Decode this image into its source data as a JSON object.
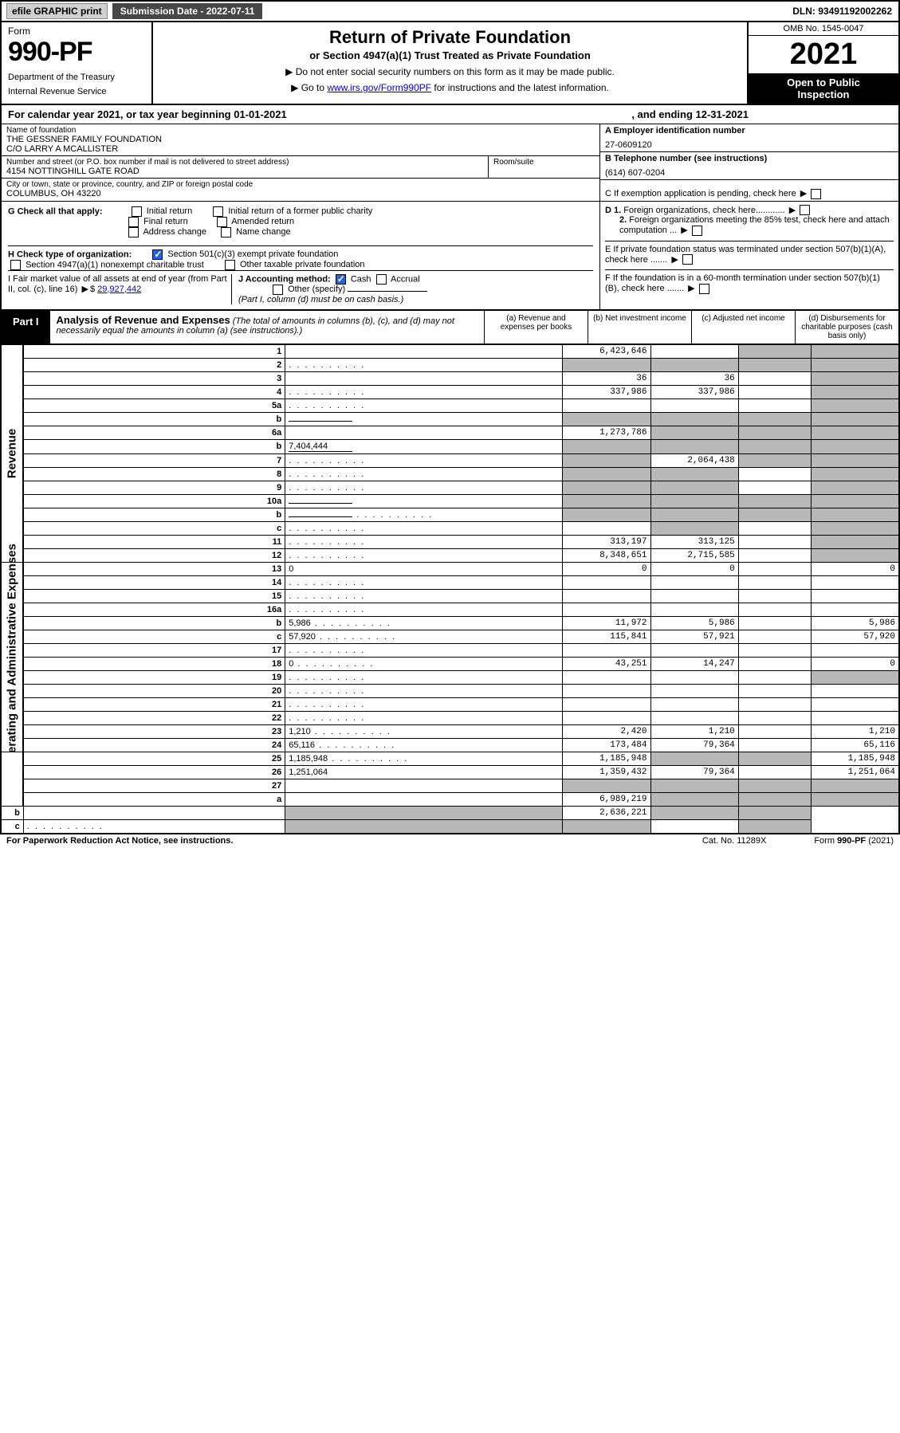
{
  "topbar": {
    "efile": "efile GRAPHIC print",
    "sub_label": "Submission Date - 2022-07-11",
    "dln": "DLN: 93491192002262"
  },
  "header": {
    "form_word": "Form",
    "form_no": "990-PF",
    "dept1": "Department of the Treasury",
    "dept2": "Internal Revenue Service",
    "title": "Return of Private Foundation",
    "subtitle": "or Section 4947(a)(1) Trust Treated as Private Foundation",
    "note1": "▶ Do not enter social security numbers on this form as it may be made public.",
    "note2_pre": "▶ Go to ",
    "note2_link": "www.irs.gov/Form990PF",
    "note2_post": " for instructions and the latest information.",
    "omb": "OMB No. 1545-0047",
    "year": "2021",
    "open1": "Open to Public",
    "open2": "Inspection"
  },
  "calyear": {
    "text": "For calendar year 2021, or tax year beginning 01-01-2021",
    "ending": ", and ending 12-31-2021"
  },
  "entity": {
    "name_lbl": "Name of foundation",
    "name1": "THE GESSNER FAMILY FOUNDATION",
    "name2": "C/O LARRY A MCALLISTER",
    "addr_lbl": "Number and street (or P.O. box number if mail is not delivered to street address)",
    "addr": "4154 NOTTINGHILL GATE ROAD",
    "room_lbl": "Room/suite",
    "city_lbl": "City or town, state or province, country, and ZIP or foreign postal code",
    "city": "COLUMBUS, OH  43220",
    "A_lbl": "A Employer identification number",
    "A_val": "27-0609120",
    "B_lbl": "B Telephone number (see instructions)",
    "B_val": "(614) 607-0204",
    "C_lbl": "C If exemption application is pending, check here"
  },
  "checks": {
    "G_lbl": "G Check all that apply:",
    "G_opts": [
      "Initial return",
      "Initial return of a former public charity",
      "Final return",
      "Amended return",
      "Address change",
      "Name change"
    ],
    "H_lbl": "H Check type of organization:",
    "H1": "Section 501(c)(3) exempt private foundation",
    "H2": "Section 4947(a)(1) nonexempt charitable trust",
    "H3": "Other taxable private foundation",
    "I_lbl": "I Fair market value of all assets at end of year (from Part II, col. (c), line 16)",
    "I_val": "29,927,442",
    "J_lbl": "J Accounting method:",
    "J1": "Cash",
    "J2": "Accrual",
    "J3": "Other (specify)",
    "J_note": "(Part I, column (d) must be on cash basis.)",
    "D1": "D 1. Foreign organizations, check here............",
    "D2": "2. Foreign organizations meeting the 85% test, check here and attach computation ...",
    "E": "E  If private foundation status was terminated under section 507(b)(1)(A), check here .......",
    "F": "F  If the foundation is in a 60-month termination under section 507(b)(1)(B), check here ......."
  },
  "part1": {
    "tab": "Part I",
    "title_b": "Analysis of Revenue and Expenses",
    "title_i": " (The total of amounts in columns (b), (c), and (d) may not necessarily equal the amounts in column (a) (see instructions).)",
    "col_a": "(a)  Revenue and expenses per books",
    "col_b": "(b)  Net investment income",
    "col_c": "(c)  Adjusted net income",
    "col_d": "(d)  Disbursements for charitable purposes (cash basis only)"
  },
  "side": {
    "rev": "Revenue",
    "exp": "Operating and Administrative Expenses"
  },
  "rows": [
    {
      "n": "1",
      "d": "",
      "a": "6,423,646",
      "b": "",
      "c": "",
      "cs": true,
      "ds": true
    },
    {
      "n": "2",
      "d": "",
      "dots": true,
      "a": "",
      "b": "",
      "c": "",
      "as": true,
      "bs": true,
      "cs": true,
      "ds": true
    },
    {
      "n": "3",
      "d": "",
      "a": "36",
      "b": "36",
      "c": "",
      "ds": true
    },
    {
      "n": "4",
      "d": "",
      "dots": true,
      "a": "337,986",
      "b": "337,986",
      "c": "",
      "ds": true
    },
    {
      "n": "5a",
      "d": "",
      "dots": true,
      "a": "",
      "b": "",
      "c": "",
      "ds": true
    },
    {
      "n": "b",
      "d": "",
      "uline": true,
      "a": "",
      "b": "",
      "c": "",
      "as": true,
      "bs": true,
      "cs": true,
      "ds": true
    },
    {
      "n": "6a",
      "d": "",
      "a": "1,273,786",
      "b": "",
      "c": "",
      "bs": true,
      "cs": true,
      "ds": true
    },
    {
      "n": "b",
      "d": "",
      "uline": true,
      "uval": "7,404,444",
      "a": "",
      "b": "",
      "c": "",
      "as": true,
      "bs": true,
      "cs": true,
      "ds": true
    },
    {
      "n": "7",
      "d": "",
      "dots": true,
      "a": "",
      "b": "2,064,438",
      "c": "",
      "as": true,
      "cs": true,
      "ds": true
    },
    {
      "n": "8",
      "d": "",
      "dots": true,
      "a": "",
      "b": "",
      "c": "",
      "as": true,
      "bs": true,
      "ds": true
    },
    {
      "n": "9",
      "d": "",
      "dots": true,
      "a": "",
      "b": "",
      "c": "",
      "as": true,
      "bs": true,
      "ds": true
    },
    {
      "n": "10a",
      "d": "",
      "uline": true,
      "a": "",
      "b": "",
      "c": "",
      "as": true,
      "bs": true,
      "cs": true,
      "ds": true
    },
    {
      "n": "b",
      "d": "",
      "dots": true,
      "uline": true,
      "a": "",
      "b": "",
      "c": "",
      "as": true,
      "bs": true,
      "cs": true,
      "ds": true
    },
    {
      "n": "c",
      "d": "",
      "dots": true,
      "a": "",
      "b": "",
      "c": "",
      "bs": true,
      "ds": true
    },
    {
      "n": "11",
      "d": "",
      "dots": true,
      "a": "313,197",
      "b": "313,125",
      "c": "",
      "ds": true
    },
    {
      "n": "12",
      "d": "",
      "dots": true,
      "a": "8,348,651",
      "b": "2,715,585",
      "c": "",
      "ds": true
    },
    {
      "n": "13",
      "d": "0",
      "a": "0",
      "b": "0",
      "c": ""
    },
    {
      "n": "14",
      "d": "",
      "dots": true,
      "a": "",
      "b": "",
      "c": ""
    },
    {
      "n": "15",
      "d": "",
      "dots": true,
      "a": "",
      "b": "",
      "c": ""
    },
    {
      "n": "16a",
      "d": "",
      "dots": true,
      "a": "",
      "b": "",
      "c": ""
    },
    {
      "n": "b",
      "d": "5,986",
      "dots": true,
      "a": "11,972",
      "b": "5,986",
      "c": ""
    },
    {
      "n": "c",
      "d": "57,920",
      "dots": true,
      "a": "115,841",
      "b": "57,921",
      "c": ""
    },
    {
      "n": "17",
      "d": "",
      "dots": true,
      "a": "",
      "b": "",
      "c": ""
    },
    {
      "n": "18",
      "d": "0",
      "dots": true,
      "a": "43,251",
      "b": "14,247",
      "c": ""
    },
    {
      "n": "19",
      "d": "",
      "dots": true,
      "a": "",
      "b": "",
      "c": "",
      "ds": true
    },
    {
      "n": "20",
      "d": "",
      "dots": true,
      "a": "",
      "b": "",
      "c": ""
    },
    {
      "n": "21",
      "d": "",
      "dots": true,
      "a": "",
      "b": "",
      "c": ""
    },
    {
      "n": "22",
      "d": "",
      "dots": true,
      "a": "",
      "b": "",
      "c": ""
    },
    {
      "n": "23",
      "d": "1,210",
      "dots": true,
      "a": "2,420",
      "b": "1,210",
      "c": ""
    },
    {
      "n": "24",
      "d": "65,116",
      "dots": true,
      "a": "173,484",
      "b": "79,364",
      "c": ""
    },
    {
      "n": "25",
      "d": "1,185,948",
      "dots": true,
      "a": "1,185,948",
      "b": "",
      "c": "",
      "bs": true,
      "cs": true
    },
    {
      "n": "26",
      "d": "1,251,064",
      "a": "1,359,432",
      "b": "79,364",
      "c": ""
    },
    {
      "n": "27",
      "d": "",
      "a": "",
      "b": "",
      "c": "",
      "as": true,
      "bs": true,
      "cs": true,
      "ds": true
    },
    {
      "n": "a",
      "d": "",
      "a": "6,989,219",
      "b": "",
      "c": "",
      "bs": true,
      "cs": true,
      "ds": true
    },
    {
      "n": "b",
      "d": "",
      "a": "",
      "b": "2,636,221",
      "c": "",
      "as": true,
      "cs": true,
      "ds": true
    },
    {
      "n": "c",
      "d": "",
      "dots": true,
      "a": "",
      "b": "",
      "c": "",
      "as": true,
      "bs": true,
      "ds": true
    }
  ],
  "footer": {
    "left": "For Paperwork Reduction Act Notice, see instructions.",
    "mid": "Cat. No. 11289X",
    "right": "Form 990-PF (2021)"
  }
}
